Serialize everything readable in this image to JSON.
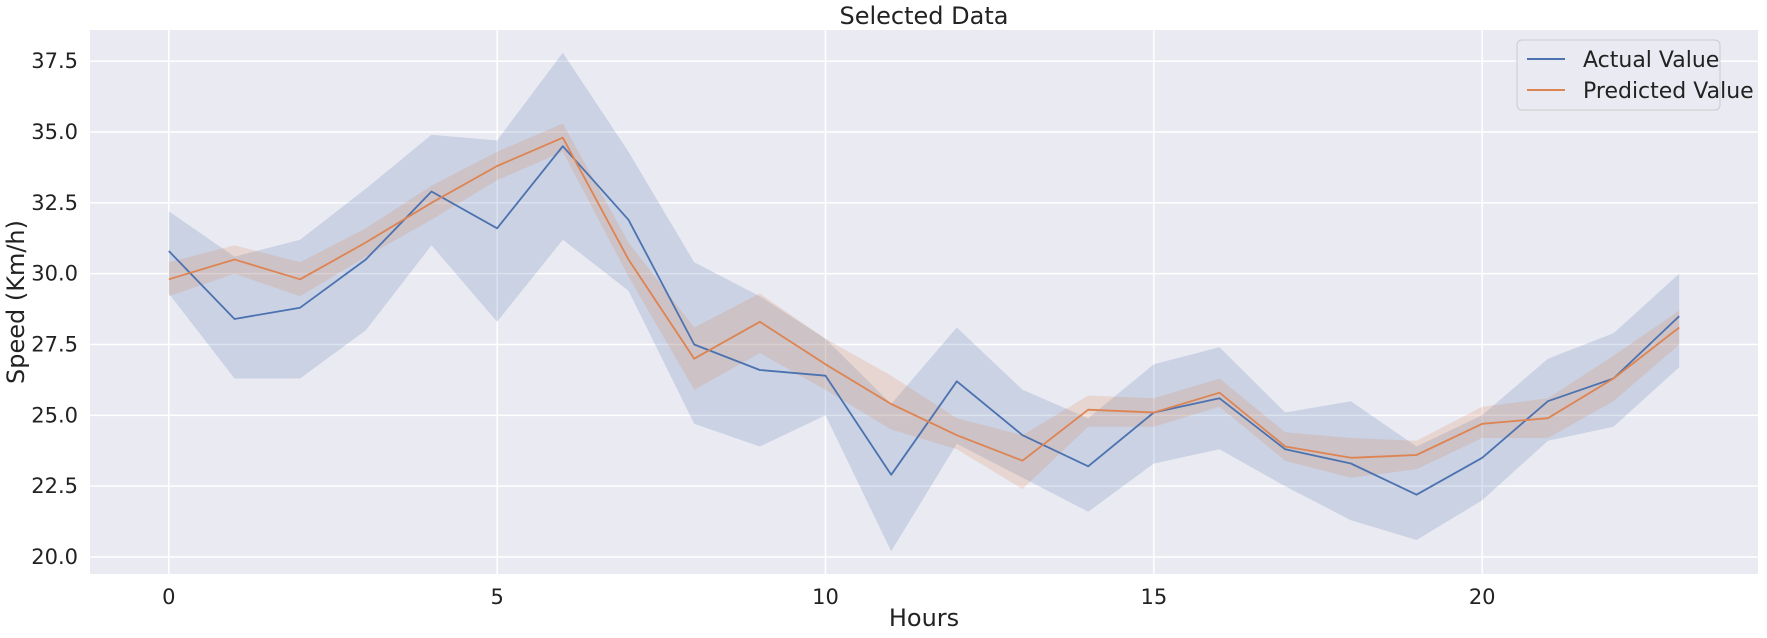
{
  "chart_data": {
    "type": "line",
    "title": "Selected Data",
    "xlabel": "Hours",
    "ylabel": "Speed (Km/h)",
    "xlim": [
      -1.2,
      24.2
    ],
    "ylim": [
      19.4,
      38.6
    ],
    "xticks": [
      "0",
      "5",
      "10",
      "15",
      "20"
    ],
    "xtick_values": [
      0,
      5,
      10,
      15,
      20
    ],
    "yticks": [
      "20.0",
      "22.5",
      "25.0",
      "27.5",
      "30.0",
      "32.5",
      "35.0",
      "37.5"
    ],
    "ytick_values": [
      20.0,
      22.5,
      25.0,
      27.5,
      30.0,
      32.5,
      35.0,
      37.5
    ],
    "grid": true,
    "legend_position": "top-right",
    "background": "#eaeaf2",
    "x": [
      0,
      1,
      2,
      3,
      4,
      5,
      6,
      7,
      8,
      9,
      10,
      11,
      12,
      13,
      14,
      15,
      16,
      17,
      18,
      19,
      20,
      21,
      22,
      23
    ],
    "series": [
      {
        "name": "Actual Value",
        "color": "#4c72b0",
        "values": [
          30.8,
          28.4,
          28.8,
          30.5,
          32.9,
          31.6,
          34.5,
          31.9,
          27.5,
          26.6,
          26.4,
          22.9,
          26.2,
          24.3,
          23.2,
          25.1,
          25.6,
          23.8,
          23.3,
          22.2,
          23.5,
          25.5,
          26.3,
          28.5
        ],
        "ci_lower": [
          29.3,
          26.3,
          26.3,
          28.0,
          31.0,
          28.3,
          31.2,
          29.4,
          24.7,
          23.9,
          25.0,
          20.2,
          24.0,
          22.8,
          21.6,
          23.3,
          23.8,
          22.5,
          21.3,
          20.6,
          22.0,
          24.1,
          24.6,
          26.7
        ],
        "ci_upper": [
          32.2,
          30.6,
          31.2,
          33.0,
          34.9,
          34.7,
          37.8,
          34.3,
          30.4,
          29.2,
          27.7,
          25.4,
          28.1,
          25.9,
          24.9,
          26.8,
          27.4,
          25.1,
          25.5,
          23.9,
          25.0,
          27.0,
          27.9,
          30.0
        ]
      },
      {
        "name": "Predicted Value",
        "color": "#dd8452",
        "values": [
          29.8,
          30.5,
          29.8,
          31.1,
          32.5,
          33.8,
          34.8,
          30.5,
          27.0,
          28.3,
          26.8,
          25.4,
          24.3,
          23.4,
          25.2,
          25.1,
          25.8,
          23.9,
          23.5,
          23.6,
          24.7,
          24.9,
          26.3,
          28.1
        ],
        "ci_lower": [
          29.2,
          30.0,
          29.2,
          30.6,
          31.9,
          33.3,
          34.3,
          29.9,
          25.9,
          27.2,
          25.9,
          24.5,
          23.8,
          22.4,
          24.6,
          24.6,
          25.3,
          23.4,
          22.8,
          23.1,
          24.2,
          24.2,
          25.5,
          27.5
        ],
        "ci_upper": [
          30.4,
          31.0,
          30.4,
          31.6,
          33.1,
          34.3,
          35.3,
          31.1,
          28.1,
          29.3,
          27.7,
          26.4,
          24.9,
          24.3,
          25.7,
          25.6,
          26.3,
          24.4,
          24.2,
          24.1,
          25.3,
          25.6,
          27.1,
          28.7
        ]
      }
    ]
  }
}
